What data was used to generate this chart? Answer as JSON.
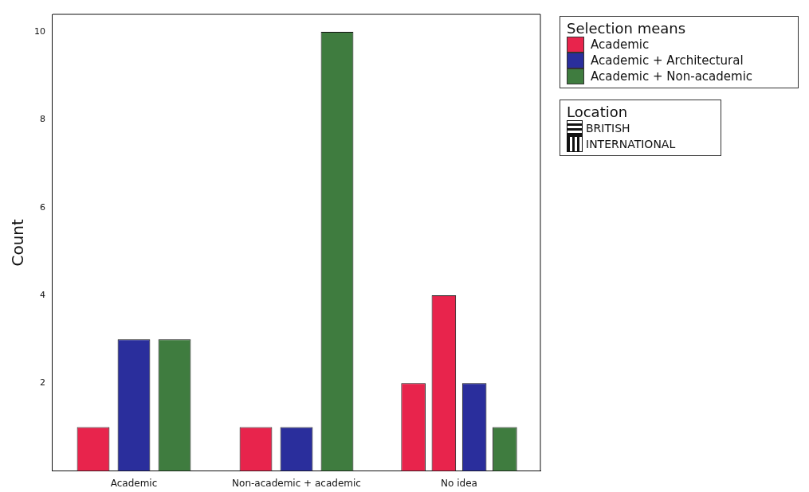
{
  "chart_data": {
    "type": "bar",
    "ylabel": "Count",
    "legend_title": "Selection means",
    "legend": "top right",
    "categories": [
      "Academic",
      "Non-academic + academic",
      "No idea"
    ],
    "series": [
      {
        "color": "#e8244c",
        "values": [
          null,
          null,
          2
        ]
      },
      {
        "name": "Academic",
        "color": "#e8244c",
        "values": [
          1,
          1,
          4
        ]
      },
      {
        "name": "Academic + Architectural",
        "color": "#2a2e9c",
        "values": [
          3,
          1,
          2
        ]
      },
      {
        "name": "Academic + Non-academic",
        "color": "#3f7c3f",
        "values": [
          3,
          10,
          1
        ]
      }
    ],
    "ylim": [
      0,
      10.4
    ],
    "yticks": [
      2,
      4,
      6,
      8,
      10
    ],
    "grid": false,
    "annotations": [
      "Location",
      "BRITISH",
      "INTERNATIONAL"
    ]
  }
}
